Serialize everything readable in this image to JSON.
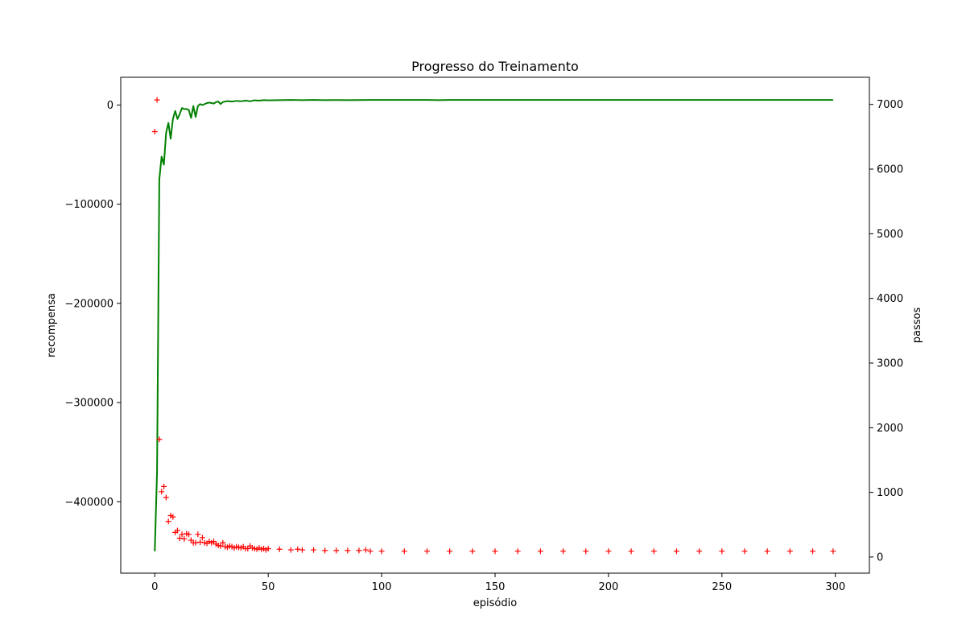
{
  "chart_data": {
    "type": "line",
    "title": "Progresso do Treinamento",
    "xlabel": "episódio",
    "ylabel_left": "recompensa",
    "ylabel_right": "passos",
    "xlim": [
      -15,
      315
    ],
    "ylim_left": [
      -472000,
      28000
    ],
    "ylim_right": [
      -250,
      7420
    ],
    "x_ticks": [
      0,
      50,
      100,
      150,
      200,
      250,
      300
    ],
    "y_ticks_left": [
      0,
      -100000,
      -200000,
      -300000,
      -400000
    ],
    "y_ticks_right": [
      0,
      1000,
      2000,
      3000,
      4000,
      5000,
      6000,
      7000
    ],
    "grid": false,
    "series": [
      {
        "axis": "left",
        "style": "line",
        "color": "#008000",
        "x": [
          0,
          1,
          2,
          3,
          4,
          5,
          6,
          7,
          8,
          9,
          10,
          11,
          12,
          13,
          14,
          15,
          16,
          17,
          18,
          19,
          20,
          21,
          22,
          23,
          24,
          25,
          26,
          27,
          28,
          29,
          30,
          32,
          34,
          36,
          38,
          40,
          42,
          44,
          46,
          48,
          50,
          55,
          60,
          65,
          70,
          75,
          80,
          85,
          90,
          95,
          100,
          110,
          120,
          125,
          130,
          140,
          150,
          200,
          250,
          299
        ],
        "y": [
          -450000,
          -370000,
          -75000,
          -52000,
          -60000,
          -28000,
          -18000,
          -34000,
          -14000,
          -6000,
          -14000,
          -9000,
          -3000,
          -4000,
          -4000,
          -5000,
          -13000,
          -1000,
          -12000,
          -1000,
          1000,
          0,
          1000,
          2000,
          2500,
          2000,
          1500,
          3000,
          3500,
          1000,
          3000,
          4000,
          3500,
          4200,
          3800,
          4500,
          3800,
          4800,
          4500,
          5000,
          4800,
          5000,
          5200,
          5000,
          5200,
          5000,
          5100,
          5000,
          5100,
          5200,
          5200,
          5200,
          5200,
          5000,
          5200,
          5200,
          5200,
          5200,
          5200,
          5200
        ]
      },
      {
        "axis": "right",
        "style": "marker",
        "marker": "+",
        "color": "#ff0000",
        "x": [
          0,
          1,
          2,
          3,
          4,
          5,
          6,
          7,
          8,
          9,
          10,
          11,
          12,
          13,
          14,
          15,
          16,
          17,
          18,
          19,
          20,
          21,
          22,
          23,
          24,
          25,
          26,
          27,
          28,
          29,
          30,
          31,
          32,
          33,
          34,
          35,
          36,
          37,
          38,
          39,
          40,
          41,
          42,
          43,
          44,
          45,
          46,
          47,
          48,
          49,
          50,
          55,
          60,
          63,
          65,
          70,
          75,
          80,
          85,
          90,
          93,
          95,
          100,
          110,
          120,
          130,
          140,
          150,
          160,
          170,
          180,
          190,
          200,
          210,
          220,
          230,
          240,
          250,
          260,
          270,
          280,
          290,
          299
        ],
        "y": [
          6580,
          7070,
          1820,
          1010,
          1090,
          920,
          550,
          640,
          620,
          380,
          410,
          290,
          350,
          280,
          360,
          350,
          260,
          220,
          220,
          350,
          230,
          300,
          220,
          210,
          240,
          220,
          240,
          200,
          180,
          170,
          220,
          160,
          150,
          170,
          160,
          140,
          160,
          150,
          140,
          160,
          130,
          130,
          170,
          140,
          130,
          120,
          140,
          120,
          130,
          110,
          130,
          120,
          110,
          120,
          110,
          110,
          100,
          100,
          100,
          100,
          110,
          90,
          90,
          90,
          90,
          90,
          90,
          90,
          90,
          90,
          90,
          90,
          90,
          90,
          90,
          90,
          90,
          90,
          90,
          90,
          90,
          90,
          90
        ]
      }
    ]
  }
}
